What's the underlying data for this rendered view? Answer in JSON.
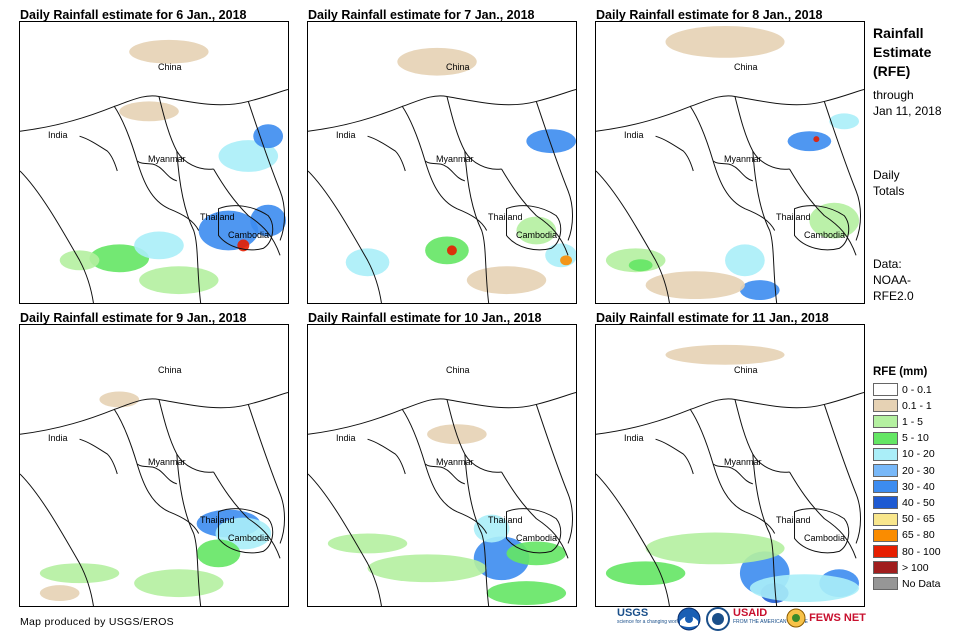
{
  "panels": [
    {
      "title": "Daily Rainfall estimate for 6 Jan., 2018",
      "labels": [
        "China",
        "India",
        "Myanmar",
        "Thailand",
        "Cambodia"
      ],
      "rain": [
        {
          "x": 100,
          "y": 238,
          "rx": 30,
          "ry": 14,
          "c": "green"
        },
        {
          "x": 140,
          "y": 225,
          "rx": 25,
          "ry": 14,
          "c": "lightblue"
        },
        {
          "x": 60,
          "y": 240,
          "rx": 20,
          "ry": 10,
          "c": "lightgreen"
        },
        {
          "x": 210,
          "y": 210,
          "rx": 30,
          "ry": 20,
          "c": "blue"
        },
        {
          "x": 225,
          "y": 225,
          "rx": 6,
          "ry": 6,
          "c": "red"
        },
        {
          "x": 250,
          "y": 200,
          "rx": 18,
          "ry": 16,
          "c": "blue"
        },
        {
          "x": 230,
          "y": 135,
          "rx": 30,
          "ry": 16,
          "c": "lightblue"
        },
        {
          "x": 250,
          "y": 115,
          "rx": 15,
          "ry": 12,
          "c": "blue"
        },
        {
          "x": 130,
          "y": 90,
          "rx": 30,
          "ry": 10,
          "c": "tan"
        },
        {
          "x": 150,
          "y": 30,
          "rx": 40,
          "ry": 12,
          "c": "tan"
        },
        {
          "x": 160,
          "y": 260,
          "rx": 40,
          "ry": 14,
          "c": "lightgreen"
        }
      ]
    },
    {
      "title": "Daily Rainfall estimate for 7 Jan., 2018",
      "labels": [
        "China",
        "India",
        "Myanmar",
        "Thailand",
        "Cambodia"
      ],
      "rain": [
        {
          "x": 60,
          "y": 242,
          "rx": 22,
          "ry": 14,
          "c": "lightblue"
        },
        {
          "x": 140,
          "y": 230,
          "rx": 22,
          "ry": 14,
          "c": "green"
        },
        {
          "x": 145,
          "y": 230,
          "rx": 5,
          "ry": 5,
          "c": "red"
        },
        {
          "x": 255,
          "y": 235,
          "rx": 16,
          "ry": 12,
          "c": "lightblue"
        },
        {
          "x": 260,
          "y": 240,
          "rx": 6,
          "ry": 5,
          "c": "orange"
        },
        {
          "x": 230,
          "y": 210,
          "rx": 20,
          "ry": 14,
          "c": "lightgreen"
        },
        {
          "x": 245,
          "y": 120,
          "rx": 25,
          "ry": 12,
          "c": "blue"
        },
        {
          "x": 200,
          "y": 260,
          "rx": 40,
          "ry": 14,
          "c": "tan"
        },
        {
          "x": 130,
          "y": 40,
          "rx": 40,
          "ry": 14,
          "c": "tan"
        }
      ]
    },
    {
      "title": "Daily Rainfall estimate for 8 Jan., 2018",
      "labels": [
        "China",
        "India",
        "Myanmar",
        "Thailand",
        "Cambodia"
      ],
      "rain": [
        {
          "x": 40,
          "y": 240,
          "rx": 30,
          "ry": 12,
          "c": "lightgreen"
        },
        {
          "x": 45,
          "y": 245,
          "rx": 12,
          "ry": 6,
          "c": "green"
        },
        {
          "x": 150,
          "y": 240,
          "rx": 20,
          "ry": 16,
          "c": "lightblue"
        },
        {
          "x": 165,
          "y": 270,
          "rx": 20,
          "ry": 10,
          "c": "blue"
        },
        {
          "x": 240,
          "y": 200,
          "rx": 25,
          "ry": 18,
          "c": "lightgreen"
        },
        {
          "x": 215,
          "y": 120,
          "rx": 22,
          "ry": 10,
          "c": "blue"
        },
        {
          "x": 222,
          "y": 118,
          "rx": 3,
          "ry": 3,
          "c": "red"
        },
        {
          "x": 250,
          "y": 100,
          "rx": 15,
          "ry": 8,
          "c": "lightblue"
        },
        {
          "x": 130,
          "y": 20,
          "rx": 60,
          "ry": 16,
          "c": "tan"
        },
        {
          "x": 100,
          "y": 265,
          "rx": 50,
          "ry": 14,
          "c": "tan"
        }
      ]
    },
    {
      "title": "Daily Rainfall estimate for 9 Jan., 2018",
      "labels": [
        "China",
        "India",
        "Myanmar",
        "Thailand",
        "Cambodia"
      ],
      "rain": [
        {
          "x": 210,
          "y": 200,
          "rx": 32,
          "ry": 14,
          "c": "blue"
        },
        {
          "x": 225,
          "y": 210,
          "rx": 28,
          "ry": 16,
          "c": "lightblue"
        },
        {
          "x": 200,
          "y": 230,
          "rx": 22,
          "ry": 14,
          "c": "green"
        },
        {
          "x": 160,
          "y": 260,
          "rx": 45,
          "ry": 14,
          "c": "lightgreen"
        },
        {
          "x": 60,
          "y": 250,
          "rx": 40,
          "ry": 10,
          "c": "lightgreen"
        },
        {
          "x": 40,
          "y": 270,
          "rx": 20,
          "ry": 8,
          "c": "tan"
        },
        {
          "x": 100,
          "y": 75,
          "rx": 20,
          "ry": 8,
          "c": "tan"
        }
      ]
    },
    {
      "title": "Daily Rainfall estimate for 10 Jan., 2018",
      "labels": [
        "China",
        "India",
        "Myanmar",
        "Thailand",
        "Cambodia"
      ],
      "rain": [
        {
          "x": 195,
          "y": 235,
          "rx": 28,
          "ry": 22,
          "c": "blue"
        },
        {
          "x": 185,
          "y": 205,
          "rx": 18,
          "ry": 14,
          "c": "lightblue"
        },
        {
          "x": 230,
          "y": 230,
          "rx": 30,
          "ry": 12,
          "c": "green"
        },
        {
          "x": 120,
          "y": 245,
          "rx": 60,
          "ry": 14,
          "c": "lightgreen"
        },
        {
          "x": 60,
          "y": 220,
          "rx": 40,
          "ry": 10,
          "c": "lightgreen"
        },
        {
          "x": 220,
          "y": 270,
          "rx": 40,
          "ry": 12,
          "c": "green"
        },
        {
          "x": 150,
          "y": 110,
          "rx": 30,
          "ry": 10,
          "c": "tan"
        }
      ]
    },
    {
      "title": "Daily Rainfall estimate for 11 Jan., 2018",
      "labels": [
        "China",
        "India",
        "Myanmar",
        "Thailand",
        "Cambodia"
      ],
      "rain": [
        {
          "x": 170,
          "y": 250,
          "rx": 25,
          "ry": 22,
          "c": "blue"
        },
        {
          "x": 180,
          "y": 270,
          "rx": 14,
          "ry": 10,
          "c": "darkblue"
        },
        {
          "x": 245,
          "y": 260,
          "rx": 20,
          "ry": 14,
          "c": "blue"
        },
        {
          "x": 120,
          "y": 225,
          "rx": 70,
          "ry": 16,
          "c": "lightgreen"
        },
        {
          "x": 210,
          "y": 265,
          "rx": 55,
          "ry": 14,
          "c": "lightblue"
        },
        {
          "x": 50,
          "y": 250,
          "rx": 40,
          "ry": 12,
          "c": "green"
        },
        {
          "x": 130,
          "y": 30,
          "rx": 60,
          "ry": 10,
          "c": "tan"
        }
      ]
    }
  ],
  "side": {
    "title_lines": [
      "Rainfall",
      "Estimate",
      "(RFE)"
    ],
    "through_lines": [
      "through",
      "Jan 11, 2018"
    ],
    "totals_lines": [
      "Daily",
      "Totals"
    ],
    "data_lines": [
      "Data:",
      "NOAA-",
      "RFE2.0"
    ]
  },
  "legend": {
    "title": "RFE (mm)",
    "items": [
      {
        "label": "0 - 0.1",
        "color": "#ffffff"
      },
      {
        "label": "0.1 - 1",
        "color": "#e6d2b4"
      },
      {
        "label": "1 - 5",
        "color": "#b4f0a0"
      },
      {
        "label": "5 - 10",
        "color": "#64e664"
      },
      {
        "label": "10 - 20",
        "color": "#aaeef8"
      },
      {
        "label": "20 - 30",
        "color": "#78b8f8"
      },
      {
        "label": "30 - 40",
        "color": "#3c8cf0"
      },
      {
        "label": "40 - 50",
        "color": "#1e5ad2"
      },
      {
        "label": "50 - 65",
        "color": "#f8e68c"
      },
      {
        "label": "65 - 80",
        "color": "#fa8c00"
      },
      {
        "label": "80 - 100",
        "color": "#e61e00"
      },
      {
        "label": "> 100",
        "color": "#a01e1e"
      },
      {
        "label": "No Data",
        "color": "#969696"
      }
    ]
  },
  "rain_colors": {
    "tan": "#e6d2b4",
    "lightgreen": "#b4f0a0",
    "green": "#64e664",
    "lightblue": "#aaeef8",
    "blue": "#3c8cf0",
    "darkblue": "#1e5ad2",
    "orange": "#fa8c00",
    "red": "#e61e00"
  },
  "footer": {
    "credit": "Map produced by USGS/EROS",
    "logo_usgs": "USGS",
    "logo_usgs_tagline": "science for a changing world",
    "logo_usaid": "USAID",
    "logo_usaid_tagline": "FROM THE AMERICAN PEOPLE",
    "logo_fews": "FEWS NET"
  }
}
